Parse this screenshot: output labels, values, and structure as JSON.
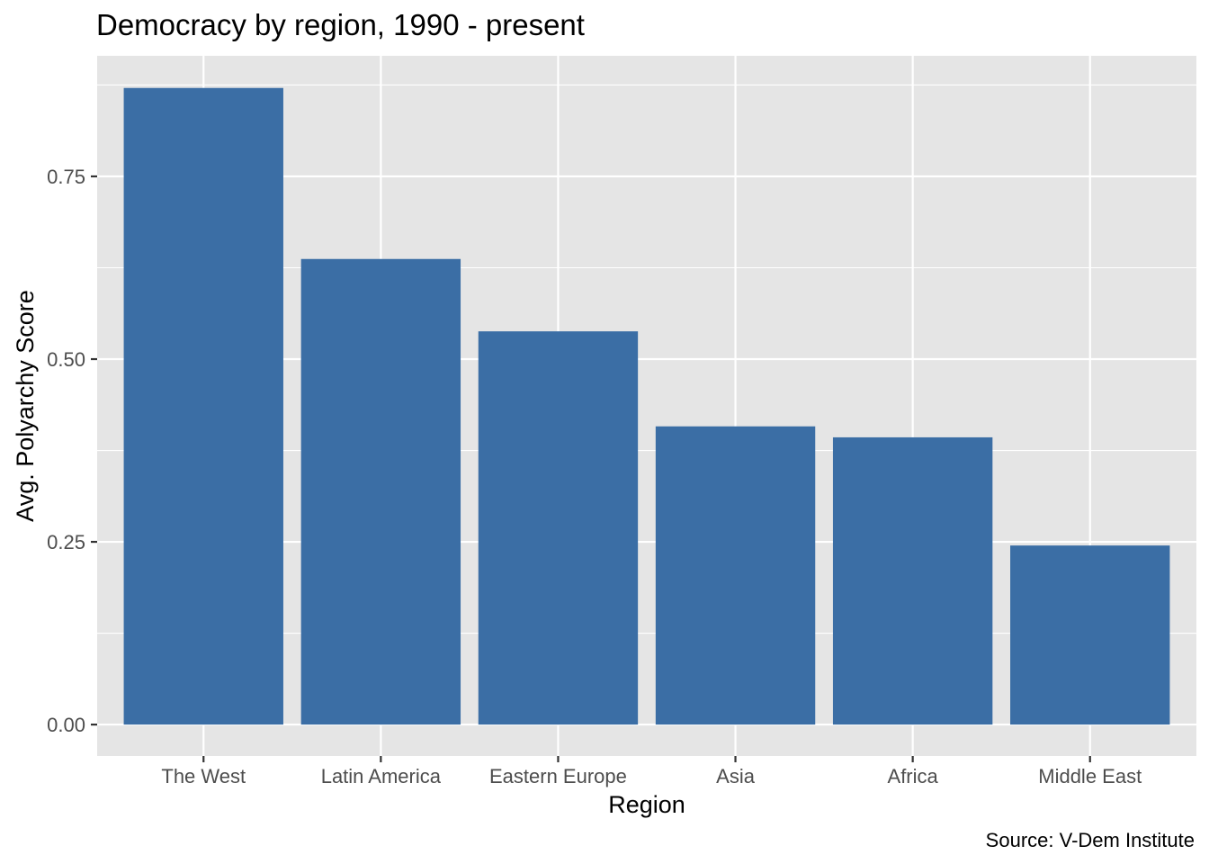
{
  "chart_data": {
    "type": "bar",
    "title": "Democracy by region, 1990 - present",
    "xlabel": "Region",
    "ylabel": "Avg. Polyarchy Score",
    "caption": "Source: V-Dem Institute",
    "categories": [
      "The West",
      "Latin America",
      "Eastern Europe",
      "Asia",
      "Africa",
      "Middle East"
    ],
    "values": [
      0.871,
      0.637,
      0.538,
      0.408,
      0.393,
      0.245
    ],
    "ylim": [
      -0.043,
      0.915
    ],
    "yticks": [
      0.0,
      0.25,
      0.5,
      0.75
    ],
    "ytick_labels": [
      "0.00",
      "0.25",
      "0.50",
      "0.75"
    ],
    "grid": true,
    "bar_color": "#3b6ea5",
    "panel_color": "#e5e5e5",
    "grid_color": "#ffffff"
  }
}
